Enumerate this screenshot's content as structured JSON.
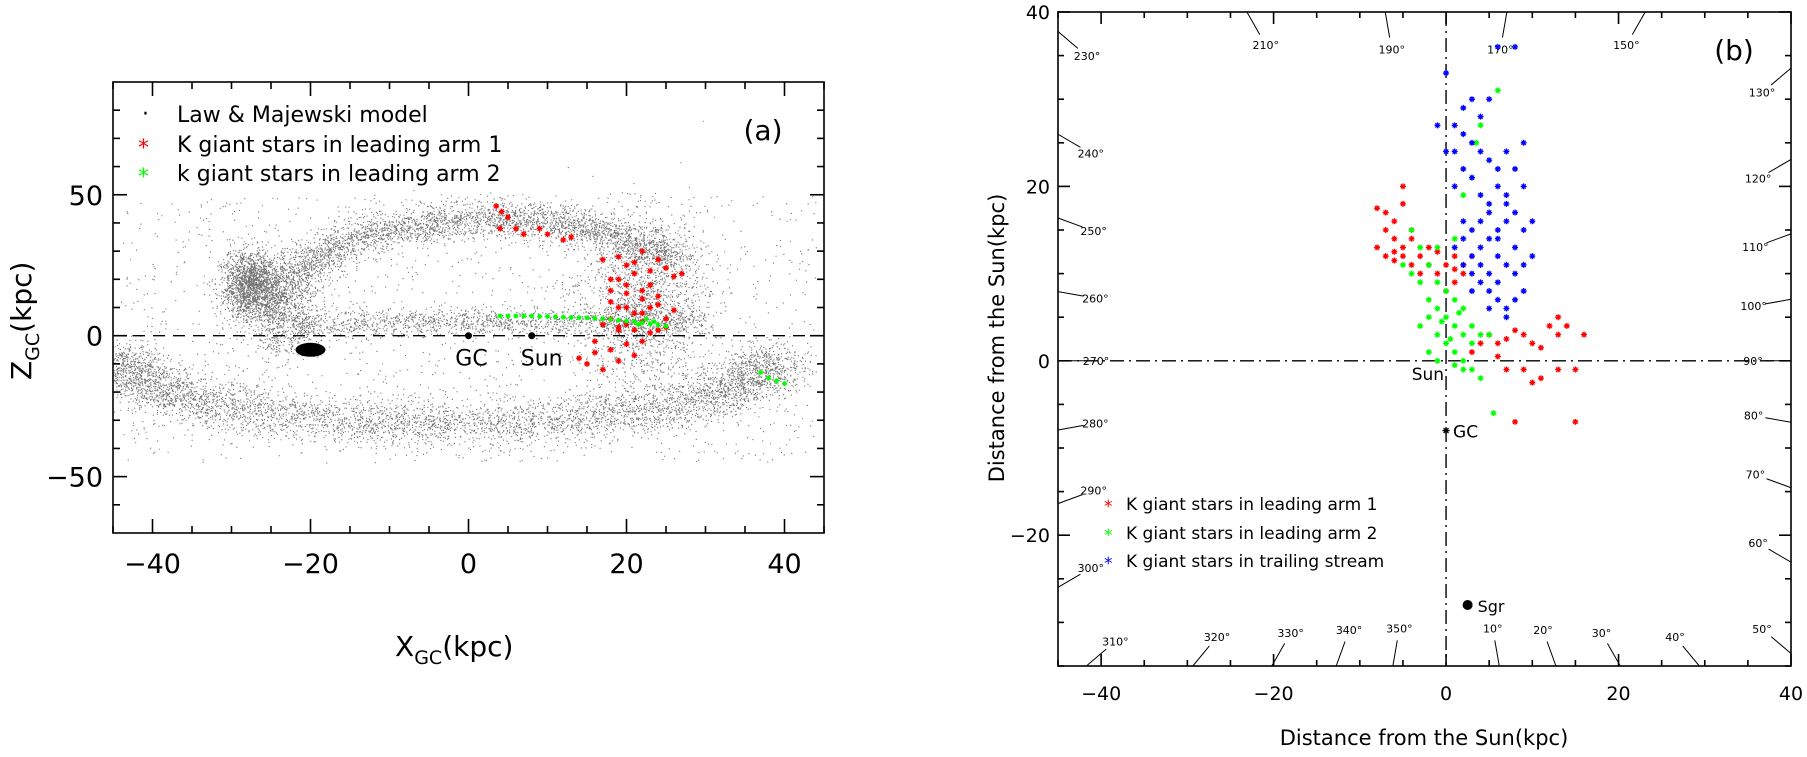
{
  "chart_data": [
    {
      "id": "a",
      "type": "scatter",
      "panel_label": "(a)",
      "xlabel_main": "X",
      "xlabel_sub": "GC",
      "xlabel_unit": "(kpc)",
      "ylabel_main": "Z",
      "ylabel_sub": "GC",
      "ylabel_unit": "(kpc)",
      "xlim": [
        -45,
        45
      ],
      "ylim": [
        -70,
        90
      ],
      "xticks": [
        -40,
        -20,
        0,
        20,
        40
      ],
      "yticks": [
        -50,
        0,
        50
      ],
      "ytick_labels": [
        "−50",
        "0",
        "50"
      ],
      "xtick_labels": [
        "−40",
        "−20",
        "0",
        "20",
        "40"
      ],
      "legend": [
        {
          "marker": "·",
          "color": "#000000",
          "label": "Law & Majewski model"
        },
        {
          "marker": "*",
          "color": "#ff0000",
          "label": "K giant stars in leading arm 1"
        },
        {
          "marker": "*",
          "color": "#00ff00",
          "label": "k giant stars in leading arm 2"
        }
      ],
      "reference_line_y": 0,
      "points_labeled": [
        {
          "name": "GC",
          "x": 0,
          "y": 0
        },
        {
          "name": "Sun",
          "x": 8,
          "y": 0
        }
      ],
      "model_cluster": {
        "x": -20,
        "y": -5
      },
      "series": [
        {
          "name": "K giant stars in leading arm 1",
          "color": "#ff0000",
          "points": [
            [
              3.5,
              46
            ],
            [
              4.2,
              44
            ],
            [
              5,
              42
            ],
            [
              4,
              38
            ],
            [
              6,
              38
            ],
            [
              7,
              36
            ],
            [
              9,
              38
            ],
            [
              10,
              36
            ],
            [
              12,
              34
            ],
            [
              13,
              35
            ],
            [
              17,
              27
            ],
            [
              18,
              20
            ],
            [
              19,
              28
            ],
            [
              20,
              25
            ],
            [
              21,
              22
            ],
            [
              22,
              30
            ],
            [
              23,
              18
            ],
            [
              24,
              27
            ],
            [
              25,
              24
            ],
            [
              26,
              21
            ],
            [
              27,
              22
            ],
            [
              18,
              12
            ],
            [
              19,
              10
            ],
            [
              20,
              15
            ],
            [
              21,
              8
            ],
            [
              22,
              13
            ],
            [
              23,
              10
            ],
            [
              24,
              14
            ],
            [
              25,
              6
            ],
            [
              26,
              9
            ],
            [
              17,
              4
            ],
            [
              18,
              6
            ],
            [
              19,
              3
            ],
            [
              20,
              4
            ],
            [
              21,
              2
            ],
            [
              22,
              5
            ],
            [
              23,
              1
            ],
            [
              24,
              2
            ],
            [
              25,
              3
            ],
            [
              14,
              -8
            ],
            [
              15,
              -10
            ],
            [
              16,
              -6
            ],
            [
              17,
              -12
            ],
            [
              18,
              -5
            ],
            [
              19,
              -9
            ],
            [
              20,
              -3
            ],
            [
              21,
              -7
            ],
            [
              22,
              -2
            ],
            [
              16,
              -2
            ],
            [
              20,
              18
            ],
            [
              22,
              16
            ],
            [
              19,
              20
            ],
            [
              23,
              23
            ],
            [
              21,
              26
            ],
            [
              24,
              11
            ],
            [
              18,
              16
            ],
            [
              20,
              10
            ],
            [
              22,
              8
            ],
            [
              19,
              2
            ]
          ]
        },
        {
          "name": "k giant stars in leading arm 2",
          "color": "#00ff00",
          "points": [
            [
              4,
              7
            ],
            [
              5,
              7
            ],
            [
              6,
              7
            ],
            [
              7,
              7
            ],
            [
              8,
              7
            ],
            [
              9,
              6.8
            ],
            [
              10,
              6.8
            ],
            [
              11,
              6.7
            ],
            [
              12,
              6.6
            ],
            [
              13,
              6.5
            ],
            [
              14,
              6.4
            ],
            [
              15,
              6.3
            ],
            [
              16,
              6.2
            ],
            [
              17,
              6
            ],
            [
              18,
              5.8
            ],
            [
              19,
              5.5
            ],
            [
              20,
              5.2
            ],
            [
              21,
              5
            ],
            [
              22,
              4.6
            ],
            [
              23,
              4.2
            ],
            [
              24,
              3.8
            ],
            [
              25,
              3.4
            ],
            [
              22.5,
              6
            ],
            [
              23.5,
              5
            ],
            [
              21.5,
              4
            ],
            [
              38,
              -15
            ],
            [
              39,
              -16
            ],
            [
              37,
              -13
            ],
            [
              40,
              -17
            ]
          ]
        }
      ]
    },
    {
      "id": "b",
      "type": "scatter",
      "panel_label": "(b)",
      "xlabel": "Distance from the Sun(kpc)",
      "ylabel": "Distance from the Sun(kpc)",
      "xlim": [
        -45,
        40
      ],
      "ylim": [
        -35,
        40
      ],
      "xticks": [
        -40,
        -20,
        0,
        20,
        40
      ],
      "yticks": [
        -20,
        0,
        20,
        40
      ],
      "xtick_labels": [
        "−40",
        "−20",
        "0",
        "20",
        "40"
      ],
      "ytick_labels": [
        "−20",
        "0",
        "20",
        "40"
      ],
      "legend": [
        {
          "marker": "*",
          "color": "#ff0000",
          "label": "K giant stars in leading arm 1"
        },
        {
          "marker": "*",
          "color": "#00ff00",
          "label": "K giant stars in leading arm 2"
        },
        {
          "marker": "*",
          "color": "#0000ff",
          "label": "K giant stars in trailing stream"
        }
      ],
      "points_labeled": [
        {
          "name": "Sun",
          "x": 0,
          "y": 0
        },
        {
          "name": "GC",
          "x": 0,
          "y": -8
        },
        {
          "name": "Sgr",
          "x": 2.5,
          "y": -28
        }
      ],
      "angle_labels": [
        "210°",
        "190°",
        "170°",
        "150°",
        "130°",
        "120°",
        "110°",
        "100°",
        "90°",
        "80°",
        "70°",
        "60°",
        "50°",
        "40°",
        "30°",
        "20°",
        "10°",
        "350°",
        "340°",
        "330°",
        "320°",
        "310°",
        "300°",
        "290°",
        "280°",
        "270°",
        "260°",
        "250°",
        "240°",
        "230°"
      ],
      "series": [
        {
          "name": "K giant stars in leading arm 1",
          "color": "#ff0000",
          "points": [
            [
              -8,
              17.5
            ],
            [
              -7,
              17
            ],
            [
              -6,
              16
            ],
            [
              -5,
              18
            ],
            [
              -7,
              15
            ],
            [
              -6,
              14
            ],
            [
              -5,
              13
            ],
            [
              -4,
              14
            ],
            [
              -8,
              13
            ],
            [
              -7,
              12
            ],
            [
              -6,
              11.5
            ],
            [
              -5,
              12
            ],
            [
              -4,
              11
            ],
            [
              -3,
              12
            ],
            [
              -2,
              11
            ],
            [
              -1,
              10
            ],
            [
              0,
              11
            ],
            [
              1,
              10.5
            ],
            [
              2,
              10
            ],
            [
              1,
              9
            ],
            [
              0,
              8
            ],
            [
              -1,
              12.5
            ],
            [
              -2,
              13
            ],
            [
              3,
              12
            ],
            [
              2,
              11
            ],
            [
              1,
              12
            ],
            [
              -3,
              10
            ],
            [
              -5,
              20
            ],
            [
              -4,
              15
            ],
            [
              -6,
              12.5
            ],
            [
              5,
              3
            ],
            [
              6,
              2
            ],
            [
              7,
              2.5
            ],
            [
              8,
              3.5
            ],
            [
              9,
              3
            ],
            [
              10,
              2
            ],
            [
              11,
              1.5
            ],
            [
              12,
              4
            ],
            [
              13,
              5
            ],
            [
              14,
              4
            ],
            [
              16,
              3
            ],
            [
              7,
              -1
            ],
            [
              9,
              -1
            ],
            [
              11,
              -2
            ],
            [
              13,
              -1
            ],
            [
              15,
              -1
            ],
            [
              8,
              -7
            ],
            [
              15,
              -7
            ],
            [
              6,
              0.5
            ],
            [
              10,
              -2.5
            ],
            [
              3,
              1
            ],
            [
              4,
              2
            ],
            [
              13,
              3
            ]
          ]
        },
        {
          "name": "K giant stars in leading arm 2",
          "color": "#00ff00",
          "points": [
            [
              -4,
              15
            ],
            [
              -3,
              13
            ],
            [
              -2,
              11
            ],
            [
              -1,
              9
            ],
            [
              0,
              8
            ],
            [
              1,
              7
            ],
            [
              -1,
              6
            ],
            [
              0,
              5
            ],
            [
              1,
              4
            ],
            [
              2,
              3
            ],
            [
              3,
              2
            ],
            [
              -2,
              7
            ],
            [
              -3,
              9
            ],
            [
              -2,
              5
            ],
            [
              -1,
              3
            ],
            [
              0,
              2
            ],
            [
              1,
              1
            ],
            [
              2,
              0
            ],
            [
              3,
              -1
            ],
            [
              0.5,
              2.5
            ],
            [
              -0.5,
              4.5
            ],
            [
              1.5,
              5.5
            ],
            [
              -3,
              4
            ],
            [
              2,
              6
            ],
            [
              3,
              4
            ],
            [
              4,
              3
            ],
            [
              -4,
              10
            ],
            [
              -5,
              11
            ],
            [
              -1,
              13
            ],
            [
              1,
              14
            ],
            [
              2,
              19
            ],
            [
              3,
              21
            ],
            [
              3.5,
              25
            ],
            [
              4,
              27
            ],
            [
              6,
              31
            ],
            [
              5.5,
              -6
            ],
            [
              4,
              -2
            ],
            [
              2,
              -1
            ],
            [
              5,
              3
            ],
            [
              -2,
              1
            ],
            [
              -1,
              0
            ],
            [
              1,
              -0.5
            ]
          ]
        },
        {
          "name": "K giant stars in trailing stream",
          "color": "#0000ff",
          "points": [
            [
              1,
              27
            ],
            [
              2,
              29
            ],
            [
              3,
              30
            ],
            [
              2,
              26
            ],
            [
              3,
              25
            ],
            [
              4,
              24
            ],
            [
              1,
              24
            ],
            [
              2,
              22
            ],
            [
              3,
              21
            ],
            [
              4,
              19
            ],
            [
              5,
              18
            ],
            [
              6,
              20
            ],
            [
              7,
              19
            ],
            [
              6,
              22
            ],
            [
              5,
              23
            ],
            [
              7,
              24
            ],
            [
              8,
              22
            ],
            [
              9,
              20
            ],
            [
              8,
              17
            ],
            [
              7,
              16
            ],
            [
              6,
              15
            ],
            [
              5,
              14
            ],
            [
              4,
              13
            ],
            [
              3,
              12
            ],
            [
              2,
              11
            ],
            [
              3,
              10
            ],
            [
              4,
              9
            ],
            [
              5,
              8
            ],
            [
              6,
              7
            ],
            [
              7,
              6
            ],
            [
              8,
              7
            ],
            [
              9,
              8
            ],
            [
              9,
              11
            ],
            [
              10,
              12
            ],
            [
              8,
              13
            ],
            [
              9,
              15
            ],
            [
              10,
              16
            ],
            [
              5,
              17
            ],
            [
              4,
              16
            ],
            [
              3,
              15
            ],
            [
              2,
              14
            ],
            [
              1,
              13
            ],
            [
              6,
              12
            ],
            [
              7,
              11
            ],
            [
              8,
              10
            ],
            [
              6,
              9
            ],
            [
              5,
              6
            ],
            [
              7,
              5
            ],
            [
              1,
              20
            ],
            [
              0,
              33
            ],
            [
              6,
              36
            ],
            [
              8,
              36
            ],
            [
              -1,
              27
            ],
            [
              0,
              24
            ],
            [
              2,
              16
            ],
            [
              4,
              11
            ],
            [
              3,
              8
            ],
            [
              5,
              10
            ],
            [
              6,
              14
            ],
            [
              4,
              28
            ],
            [
              5,
              30
            ],
            [
              7,
              18
            ],
            [
              9,
              25
            ]
          ]
        }
      ]
    }
  ]
}
